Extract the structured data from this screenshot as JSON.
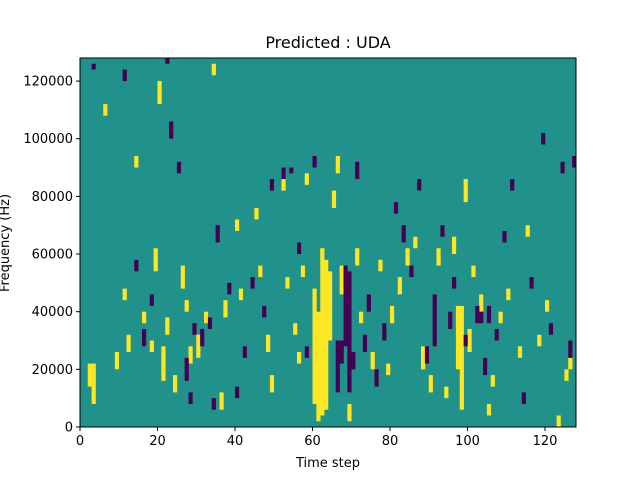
{
  "chart_data": {
    "type": "heatmap",
    "title": "Predicted : UDA",
    "xlabel": "Time step",
    "ylabel": "Frequency (Hz)",
    "xlim": [
      0,
      128
    ],
    "ylim": [
      0,
      128000
    ],
    "xticks": [
      0,
      20,
      40,
      60,
      80,
      100,
      120
    ],
    "yticks": [
      0,
      20000,
      40000,
      60000,
      80000,
      100000,
      120000
    ],
    "grid": false,
    "cell_height_hz": 2000,
    "colors": {
      "background": "#21918c",
      "high": "#fde725",
      "low": "#440154"
    },
    "yellow_cells": [
      [
        2,
        14000,
        22000
      ],
      [
        3,
        8000,
        22000
      ],
      [
        6,
        108000,
        112000
      ],
      [
        9,
        20000,
        26000
      ],
      [
        11,
        44000,
        48000
      ],
      [
        12,
        26000,
        32000
      ],
      [
        14,
        90000,
        94000
      ],
      [
        16,
        36000,
        40000
      ],
      [
        18,
        26000,
        30000
      ],
      [
        19,
        54000,
        62000
      ],
      [
        20,
        112000,
        120000
      ],
      [
        21,
        16000,
        28000
      ],
      [
        22,
        32000,
        38000
      ],
      [
        24,
        12000,
        18000
      ],
      [
        26,
        48000,
        56000
      ],
      [
        27,
        40000,
        44000
      ],
      [
        28,
        22000,
        28000
      ],
      [
        30,
        24000,
        32000
      ],
      [
        32,
        36000,
        40000
      ],
      [
        34,
        122000,
        126000
      ],
      [
        36,
        6000,
        12000
      ],
      [
        37,
        38000,
        44000
      ],
      [
        40,
        68000,
        72000
      ],
      [
        41,
        44000,
        48000
      ],
      [
        45,
        72000,
        76000
      ],
      [
        46,
        52000,
        56000
      ],
      [
        48,
        26000,
        32000
      ],
      [
        49,
        12000,
        18000
      ],
      [
        52,
        82000,
        86000
      ],
      [
        53,
        48000,
        52000
      ],
      [
        55,
        32000,
        36000
      ],
      [
        56,
        22000,
        26000
      ],
      [
        57,
        52000,
        56000
      ],
      [
        58,
        84000,
        88000
      ],
      [
        60,
        8000,
        48000
      ],
      [
        61,
        2000,
        40000
      ],
      [
        62,
        4000,
        62000
      ],
      [
        63,
        6000,
        58000
      ],
      [
        64,
        30000,
        54000
      ],
      [
        65,
        76000,
        82000
      ],
      [
        66,
        88000,
        94000
      ],
      [
        67,
        46000,
        56000
      ],
      [
        69,
        2000,
        8000
      ],
      [
        71,
        56000,
        62000
      ],
      [
        72,
        36000,
        40000
      ],
      [
        75,
        20000,
        26000
      ],
      [
        77,
        54000,
        58000
      ],
      [
        79,
        18000,
        22000
      ],
      [
        80,
        36000,
        42000
      ],
      [
        82,
        46000,
        52000
      ],
      [
        84,
        56000,
        62000
      ],
      [
        86,
        62000,
        66000
      ],
      [
        88,
        20000,
        28000
      ],
      [
        90,
        12000,
        18000
      ],
      [
        92,
        56000,
        62000
      ],
      [
        94,
        10000,
        14000
      ],
      [
        96,
        60000,
        66000
      ],
      [
        97,
        20000,
        42000
      ],
      [
        98,
        6000,
        42000
      ],
      [
        99,
        78000,
        86000
      ],
      [
        100,
        26000,
        34000
      ],
      [
        101,
        52000,
        56000
      ],
      [
        103,
        40000,
        46000
      ],
      [
        105,
        4000,
        8000
      ],
      [
        106,
        14000,
        18000
      ],
      [
        108,
        36000,
        40000
      ],
      [
        110,
        44000,
        48000
      ],
      [
        113,
        24000,
        28000
      ],
      [
        115,
        66000,
        70000
      ],
      [
        118,
        28000,
        32000
      ],
      [
        120,
        40000,
        44000
      ],
      [
        123,
        0,
        4000
      ],
      [
        125,
        16000,
        20000
      ],
      [
        126,
        20000,
        24000
      ]
    ],
    "purple_cells": [
      [
        3,
        124000,
        126000
      ],
      [
        11,
        120000,
        124000
      ],
      [
        14,
        54000,
        58000
      ],
      [
        16,
        28000,
        34000
      ],
      [
        18,
        42000,
        46000
      ],
      [
        22,
        126000,
        128000
      ],
      [
        23,
        100000,
        106000
      ],
      [
        25,
        88000,
        92000
      ],
      [
        27,
        16000,
        24000
      ],
      [
        28,
        8000,
        12000
      ],
      [
        29,
        32000,
        36000
      ],
      [
        31,
        28000,
        34000
      ],
      [
        33,
        34000,
        38000
      ],
      [
        34,
        6000,
        10000
      ],
      [
        35,
        64000,
        70000
      ],
      [
        38,
        46000,
        50000
      ],
      [
        40,
        10000,
        14000
      ],
      [
        42,
        24000,
        28000
      ],
      [
        44,
        48000,
        52000
      ],
      [
        47,
        38000,
        42000
      ],
      [
        49,
        82000,
        86000
      ],
      [
        52,
        86000,
        90000
      ],
      [
        54,
        88000,
        90000
      ],
      [
        56,
        60000,
        64000
      ],
      [
        58,
        24000,
        28000
      ],
      [
        60,
        90000,
        94000
      ],
      [
        66,
        12000,
        30000
      ],
      [
        67,
        22000,
        30000
      ],
      [
        68,
        28000,
        56000
      ],
      [
        69,
        12000,
        54000
      ],
      [
        70,
        20000,
        26000
      ],
      [
        71,
        86000,
        92000
      ],
      [
        73,
        26000,
        32000
      ],
      [
        74,
        40000,
        46000
      ],
      [
        76,
        14000,
        20000
      ],
      [
        78,
        30000,
        36000
      ],
      [
        81,
        74000,
        78000
      ],
      [
        83,
        64000,
        70000
      ],
      [
        85,
        52000,
        56000
      ],
      [
        87,
        82000,
        86000
      ],
      [
        89,
        22000,
        28000
      ],
      [
        91,
        28000,
        46000
      ],
      [
        93,
        66000,
        70000
      ],
      [
        95,
        34000,
        40000
      ],
      [
        96,
        48000,
        52000
      ],
      [
        99,
        28000,
        32000
      ],
      [
        102,
        36000,
        42000
      ],
      [
        103,
        36000,
        40000
      ],
      [
        104,
        18000,
        24000
      ],
      [
        105,
        36000,
        42000
      ],
      [
        107,
        30000,
        34000
      ],
      [
        109,
        64000,
        68000
      ],
      [
        111,
        82000,
        86000
      ],
      [
        114,
        8000,
        12000
      ],
      [
        116,
        48000,
        52000
      ],
      [
        119,
        98000,
        102000
      ],
      [
        121,
        32000,
        36000
      ],
      [
        124,
        88000,
        92000
      ],
      [
        126,
        24000,
        30000
      ],
      [
        127,
        90000,
        94000
      ]
    ]
  }
}
